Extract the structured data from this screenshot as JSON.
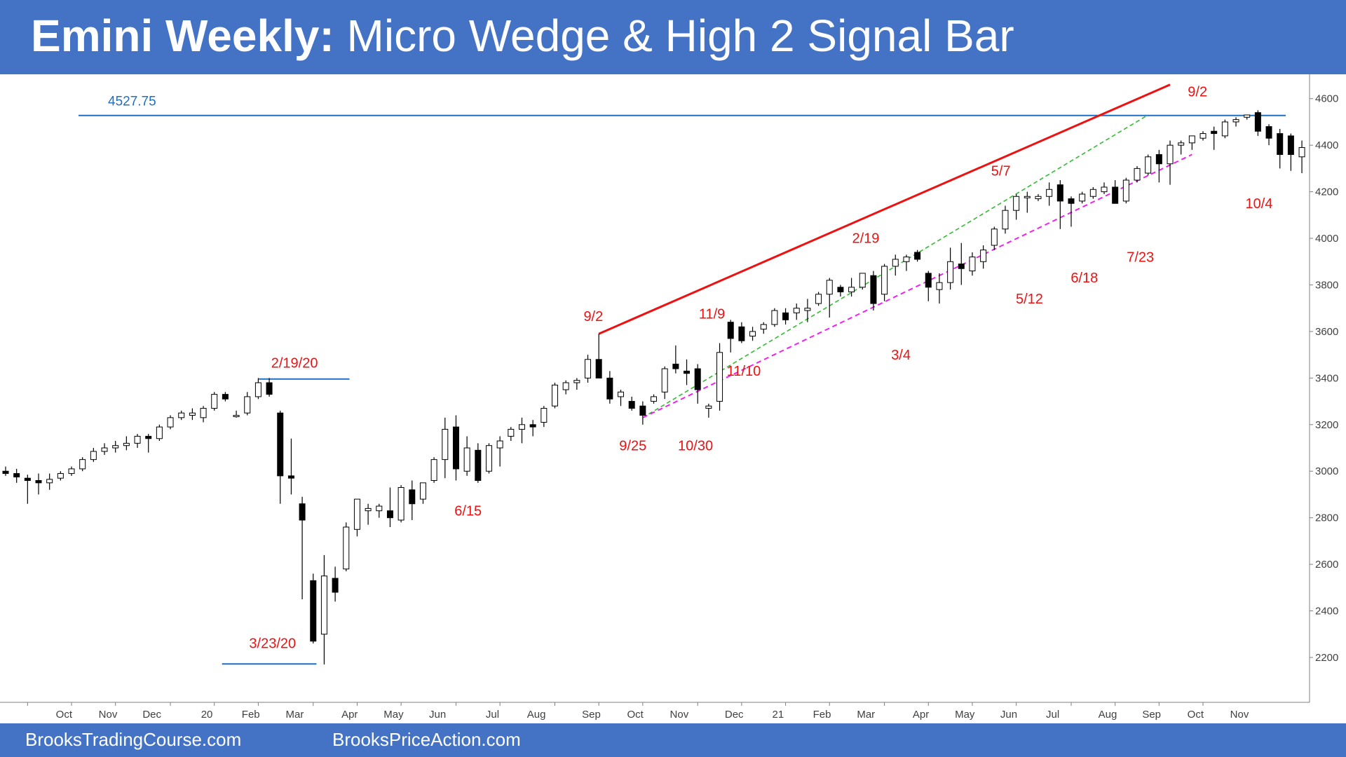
{
  "header": {
    "title_bold": "Emini Weekly:",
    "title_rest": " Micro Wedge & High 2 Signal Bar"
  },
  "footer": {
    "link_left": "BrooksTradingCourse.com",
    "link_right": "BrooksPriceAction.com"
  },
  "colors": {
    "brand_blue": "#4472c4",
    "level_line": "#1f6fc2",
    "red": "#ee1111",
    "green_dash": "#33bb33",
    "magenta_dash": "#ee22ee"
  },
  "chart_data": {
    "type": "candlestick",
    "title": "",
    "ylim": [
      2100,
      4700
    ],
    "y_ticks": [
      2200,
      2400,
      2600,
      2800,
      3000,
      3200,
      3400,
      3600,
      3800,
      4000,
      4200,
      4400,
      4600
    ],
    "x_ticks": [
      {
        "label": "Oct",
        "week": 2
      },
      {
        "label": "Nov",
        "week": 6
      },
      {
        "label": "Dec",
        "week": 10
      },
      {
        "label": "20",
        "week": 15
      },
      {
        "label": "Feb",
        "week": 19
      },
      {
        "label": "Mar",
        "week": 23
      },
      {
        "label": "Apr",
        "week": 28
      },
      {
        "label": "May",
        "week": 32
      },
      {
        "label": "Jun",
        "week": 36
      },
      {
        "label": "Jul",
        "week": 41
      },
      {
        "label": "Aug",
        "week": 45
      },
      {
        "label": "Sep",
        "week": 50
      },
      {
        "label": "Oct",
        "week": 54
      },
      {
        "label": "Nov",
        "week": 58
      },
      {
        "label": "Dec",
        "week": 63
      },
      {
        "label": "21",
        "week": 67
      },
      {
        "label": "Feb",
        "week": 71
      },
      {
        "label": "Mar",
        "week": 75
      },
      {
        "label": "Apr",
        "week": 80
      },
      {
        "label": "May",
        "week": 84
      },
      {
        "label": "Jun",
        "week": 88
      },
      {
        "label": "Jul",
        "week": 92
      },
      {
        "label": "Aug",
        "week": 97
      },
      {
        "label": "Sep",
        "week": 101
      },
      {
        "label": "Oct",
        "week": 105
      },
      {
        "label": "Nov",
        "week": 109
      }
    ],
    "candles": [
      [
        3000,
        3020,
        2980,
        2990
      ],
      [
        2990,
        3010,
        2950,
        2975
      ],
      [
        2970,
        2985,
        2860,
        2960
      ],
      [
        2960,
        2990,
        2900,
        2950
      ],
      [
        2950,
        2990,
        2920,
        2965
      ],
      [
        2970,
        3000,
        2960,
        2990
      ],
      [
        2990,
        3020,
        2980,
        3010
      ],
      [
        3010,
        3060,
        3000,
        3050
      ],
      [
        3050,
        3100,
        3040,
        3085
      ],
      [
        3085,
        3120,
        3070,
        3100
      ],
      [
        3100,
        3130,
        3080,
        3110
      ],
      [
        3110,
        3150,
        3090,
        3120
      ],
      [
        3120,
        3160,
        3100,
        3150
      ],
      [
        3150,
        3160,
        3080,
        3140
      ],
      [
        3140,
        3200,
        3130,
        3190
      ],
      [
        3190,
        3240,
        3180,
        3230
      ],
      [
        3230,
        3260,
        3220,
        3250
      ],
      [
        3240,
        3270,
        3220,
        3250
      ],
      [
        3230,
        3280,
        3210,
        3270
      ],
      [
        3270,
        3340,
        3260,
        3330
      ],
      [
        3330,
        3340,
        3300,
        3310
      ],
      [
        3240,
        3260,
        3230,
        3240
      ],
      [
        3250,
        3340,
        3240,
        3320
      ],
      [
        3320,
        3400,
        3310,
        3380
      ],
      [
        3380,
        3400,
        3320,
        3330
      ],
      [
        3250,
        3260,
        2860,
        2980
      ],
      [
        2980,
        3140,
        2900,
        2970
      ],
      [
        2860,
        2890,
        2450,
        2790
      ],
      [
        2530,
        2560,
        2260,
        2270
      ],
      [
        2300,
        2640,
        2170,
        2550
      ],
      [
        2540,
        2590,
        2440,
        2480
      ],
      [
        2580,
        2780,
        2570,
        2760
      ],
      [
        2750,
        2880,
        2720,
        2880
      ],
      [
        2830,
        2860,
        2770,
        2840
      ],
      [
        2830,
        2860,
        2800,
        2850
      ],
      [
        2830,
        2930,
        2760,
        2800
      ],
      [
        2790,
        2940,
        2780,
        2930
      ],
      [
        2920,
        2960,
        2790,
        2860
      ],
      [
        2880,
        2950,
        2860,
        2950
      ],
      [
        2960,
        3060,
        2950,
        3050
      ],
      [
        3050,
        3230,
        2970,
        3180
      ],
      [
        3190,
        3240,
        2960,
        3010
      ],
      [
        3000,
        3150,
        2980,
        3100
      ],
      [
        3090,
        3120,
        2950,
        2960
      ],
      [
        3000,
        3120,
        2990,
        3110
      ],
      [
        3100,
        3150,
        3020,
        3130
      ],
      [
        3150,
        3190,
        3130,
        3180
      ],
      [
        3180,
        3230,
        3120,
        3200
      ],
      [
        3200,
        3220,
        3150,
        3190
      ],
      [
        3210,
        3280,
        3190,
        3270
      ],
      [
        3280,
        3380,
        3270,
        3370
      ],
      [
        3350,
        3390,
        3330,
        3380
      ],
      [
        3380,
        3400,
        3350,
        3390
      ],
      [
        3400,
        3500,
        3380,
        3480
      ],
      [
        3480,
        3590,
        3400,
        3400
      ],
      [
        3400,
        3430,
        3290,
        3310
      ],
      [
        3320,
        3350,
        3280,
        3340
      ],
      [
        3300,
        3320,
        3260,
        3270
      ],
      [
        3280,
        3300,
        3200,
        3240
      ],
      [
        3300,
        3330,
        3290,
        3320
      ],
      [
        3340,
        3450,
        3310,
        3440
      ],
      [
        3460,
        3540,
        3420,
        3440
      ],
      [
        3430,
        3480,
        3370,
        3420
      ],
      [
        3440,
        3460,
        3290,
        3350
      ],
      [
        3270,
        3290,
        3230,
        3280
      ],
      [
        3300,
        3550,
        3260,
        3510
      ],
      [
        3640,
        3650,
        3510,
        3570
      ],
      [
        3620,
        3640,
        3550,
        3560
      ],
      [
        3580,
        3620,
        3560,
        3600
      ],
      [
        3610,
        3640,
        3590,
        3630
      ],
      [
        3630,
        3700,
        3620,
        3690
      ],
      [
        3680,
        3700,
        3630,
        3650
      ],
      [
        3680,
        3720,
        3650,
        3700
      ],
      [
        3690,
        3740,
        3640,
        3700
      ],
      [
        3720,
        3770,
        3710,
        3760
      ],
      [
        3760,
        3830,
        3660,
        3820
      ],
      [
        3790,
        3800,
        3750,
        3770
      ],
      [
        3770,
        3830,
        3750,
        3790
      ],
      [
        3790,
        3850,
        3780,
        3850
      ],
      [
        3840,
        3860,
        3690,
        3720
      ],
      [
        3760,
        3890,
        3730,
        3880
      ],
      [
        3880,
        3930,
        3840,
        3910
      ],
      [
        3900,
        3930,
        3860,
        3920
      ],
      [
        3940,
        3950,
        3900,
        3910
      ],
      [
        3850,
        3860,
        3730,
        3790
      ],
      [
        3780,
        3850,
        3720,
        3810
      ],
      [
        3810,
        3960,
        3780,
        3900
      ],
      [
        3890,
        3980,
        3800,
        3870
      ],
      [
        3860,
        3940,
        3840,
        3920
      ],
      [
        3900,
        3970,
        3870,
        3950
      ],
      [
        3970,
        4050,
        3950,
        4040
      ],
      [
        4040,
        4140,
        4020,
        4120
      ],
      [
        4120,
        4190,
        4080,
        4180
      ],
      [
        4180,
        4200,
        4110,
        4180
      ],
      [
        4170,
        4190,
        4160,
        4180
      ],
      [
        4180,
        4240,
        4140,
        4210
      ],
      [
        4230,
        4250,
        4040,
        4160
      ],
      [
        4170,
        4180,
        4050,
        4150
      ],
      [
        4160,
        4200,
        4150,
        4190
      ],
      [
        4180,
        4220,
        4170,
        4210
      ],
      [
        4200,
        4240,
        4190,
        4220
      ],
      [
        4220,
        4250,
        4150,
        4150
      ],
      [
        4160,
        4260,
        4150,
        4250
      ],
      [
        4250,
        4310,
        4240,
        4300
      ],
      [
        4280,
        4360,
        4270,
        4350
      ],
      [
        4360,
        4380,
        4240,
        4320
      ],
      [
        4320,
        4420,
        4230,
        4400
      ],
      [
        4400,
        4420,
        4360,
        4410
      ],
      [
        4410,
        4440,
        4380,
        4440
      ],
      [
        4430,
        4460,
        4420,
        4450
      ],
      [
        4460,
        4480,
        4380,
        4450
      ],
      [
        4440,
        4510,
        4430,
        4500
      ],
      [
        4500,
        4520,
        4480,
        4510
      ],
      [
        4520,
        4530,
        4510,
        4530
      ],
      [
        4540,
        4550,
        4440,
        4460
      ],
      [
        4480,
        4490,
        4400,
        4430
      ],
      [
        4450,
        4470,
        4300,
        4360
      ],
      [
        4440,
        4450,
        4290,
        4360
      ],
      [
        4350,
        4420,
        4280,
        4390
      ]
    ],
    "levels": [
      {
        "label": "4527.75",
        "value": 4527.75
      },
      {
        "label": "2/19/20",
        "value": 3396
      },
      {
        "label": "3/23/20",
        "value": 2172
      }
    ],
    "trendlines": [
      {
        "style": "solid-red",
        "from": {
          "week": 54,
          "price": 3590
        },
        "to": {
          "week": 106,
          "price": 4660
        }
      },
      {
        "style": "dash-green",
        "from": {
          "week": 58,
          "price": 3230
        },
        "to": {
          "week": 104,
          "price": 4530
        }
      },
      {
        "style": "dash-magenta",
        "from": {
          "week": 58,
          "price": 3230
        },
        "to": {
          "week": 108,
          "price": 4360
        }
      }
    ],
    "annotations": [
      {
        "text": "2/19/20",
        "week": 26.3,
        "price": 3445,
        "anchor": "middle"
      },
      {
        "text": "3/23/20",
        "week": 24.3,
        "price": 2240,
        "anchor": "middle"
      },
      {
        "text": "6/15",
        "week": 42.1,
        "price": 2810,
        "anchor": "middle"
      },
      {
        "text": "9/2",
        "week": 53.5,
        "price": 3645,
        "anchor": "middle"
      },
      {
        "text": "9/25",
        "week": 57.1,
        "price": 3090,
        "anchor": "middle"
      },
      {
        "text": "10/30",
        "week": 62.8,
        "price": 3090,
        "anchor": "middle"
      },
      {
        "text": "11/9",
        "week": 64.3,
        "price": 3655,
        "anchor": "middle"
      },
      {
        "text": "11/10",
        "week": 67.2,
        "price": 3410,
        "anchor": "middle"
      },
      {
        "text": "2/19",
        "week": 78.3,
        "price": 3980,
        "anchor": "middle"
      },
      {
        "text": "3/4",
        "week": 81.5,
        "price": 3480,
        "anchor": "middle"
      },
      {
        "text": "5/12",
        "week": 93.2,
        "price": 3720,
        "anchor": "middle"
      },
      {
        "text": "6/18",
        "week": 98.2,
        "price": 3810,
        "anchor": "middle"
      },
      {
        "text": "7/23",
        "week": 103.3,
        "price": 3900,
        "anchor": "middle"
      },
      {
        "text": "5/7",
        "week": 90.6,
        "price": 4270,
        "anchor": "middle"
      },
      {
        "text": "9/2",
        "week": 108.5,
        "price": 4610,
        "anchor": "middle"
      },
      {
        "text": "10/4",
        "week": 114.1,
        "price": 4130,
        "anchor": "middle"
      }
    ]
  }
}
